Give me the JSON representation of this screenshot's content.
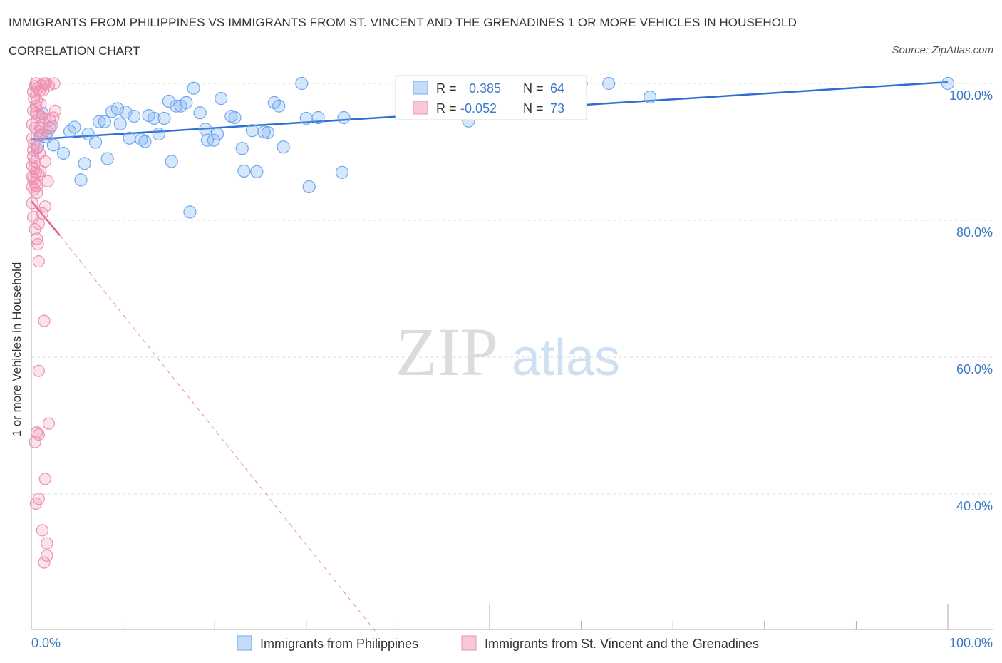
{
  "header": {
    "title": "IMMIGRANTS FROM PHILIPPINES VS IMMIGRANTS FROM ST. VINCENT AND THE GRENADINES 1 OR MORE VEHICLES IN HOUSEHOLD",
    "subtitle": "CORRELATION CHART",
    "source": "Source: ZipAtlas.com"
  },
  "watermark": {
    "zip": "ZIP",
    "atlas": "atlas"
  },
  "legend_box": {
    "rows": [
      {
        "r_label": "R =",
        "r_value": "0.385",
        "n_label": "N =",
        "n_value": "64"
      },
      {
        "r_label": "R =",
        "r_value": "-0.052",
        "n_label": "N =",
        "n_value": "73"
      }
    ]
  },
  "chart_data": {
    "type": "scatter",
    "xlabel": "",
    "ylabel": "1 or more Vehicles in Household",
    "xlim": [
      0,
      100
    ],
    "ylim": [
      20,
      100
    ],
    "x_tick_labels": [
      "0.0%",
      "100.0%"
    ],
    "y_tick_labels": [
      "100.0%",
      "80.0%",
      "60.0%",
      "40.0%"
    ],
    "y_ticks": [
      100,
      80,
      60,
      40
    ],
    "grid": true,
    "legend_position": "bottom",
    "colors": {
      "philippines": "#6fa8f0",
      "philippines_line": "#2f6fcf",
      "stvincent": "#f08fb0",
      "stvincent_line": "#e05a8a",
      "axis_text": "#3c78c8"
    },
    "series": [
      {
        "name": "Immigrants from Philippines",
        "trend": [
          [
            0,
            91.8
          ],
          [
            100,
            100.2
          ]
        ],
        "points": [
          [
            0.7,
            90.8
          ],
          [
            1.0,
            92.4
          ],
          [
            1.7,
            92.2
          ],
          [
            2.0,
            93.5
          ],
          [
            2.4,
            91.0
          ],
          [
            3.5,
            89.8
          ],
          [
            4.2,
            93.0
          ],
          [
            4.7,
            93.6
          ],
          [
            5.4,
            85.9
          ],
          [
            5.8,
            88.3
          ],
          [
            6.2,
            92.6
          ],
          [
            7.0,
            91.4
          ],
          [
            7.4,
            94.4
          ],
          [
            8.0,
            94.4
          ],
          [
            8.3,
            89.0
          ],
          [
            8.8,
            95.9
          ],
          [
            9.4,
            96.3
          ],
          [
            9.7,
            94.1
          ],
          [
            10.3,
            95.8
          ],
          [
            10.7,
            92.0
          ],
          [
            11.2,
            95.2
          ],
          [
            12.0,
            91.8
          ],
          [
            12.4,
            91.5
          ],
          [
            12.8,
            95.3
          ],
          [
            13.4,
            94.9
          ],
          [
            13.9,
            92.6
          ],
          [
            14.5,
            94.9
          ],
          [
            15.0,
            97.4
          ],
          [
            15.3,
            88.6
          ],
          [
            15.8,
            96.7
          ],
          [
            16.3,
            96.7
          ],
          [
            16.9,
            97.2
          ],
          [
            17.3,
            81.2
          ],
          [
            17.7,
            99.3
          ],
          [
            18.4,
            95.7
          ],
          [
            19.0,
            93.3
          ],
          [
            19.2,
            91.7
          ],
          [
            19.9,
            91.7
          ],
          [
            20.3,
            92.6
          ],
          [
            20.7,
            97.8
          ],
          [
            21.8,
            95.2
          ],
          [
            22.2,
            95.0
          ],
          [
            23.0,
            90.5
          ],
          [
            23.2,
            87.2
          ],
          [
            24.1,
            93.1
          ],
          [
            24.6,
            87.1
          ],
          [
            25.4,
            92.9
          ],
          [
            25.8,
            92.8
          ],
          [
            26.5,
            97.2
          ],
          [
            27.0,
            96.7
          ],
          [
            27.5,
            90.7
          ],
          [
            29.5,
            100.0
          ],
          [
            30.0,
            94.9
          ],
          [
            30.3,
            84.9
          ],
          [
            31.3,
            95.0
          ],
          [
            33.9,
            87.0
          ],
          [
            34.1,
            95.0
          ],
          [
            47.7,
            94.5
          ],
          [
            54.8,
            97.8
          ],
          [
            60.0,
            100.0
          ],
          [
            63.0,
            100.0
          ],
          [
            67.5,
            98.0
          ],
          [
            100.0,
            100.0
          ],
          [
            1.2,
            95.6
          ]
        ]
      },
      {
        "name": "Immigrants from St. Vincent and the Grenadines",
        "trend_solid": [
          [
            0,
            82.8
          ],
          [
            3.1,
            77.8
          ]
        ],
        "trend_dashed": [
          [
            3.1,
            77.8
          ],
          [
            37.5,
            20.0
          ]
        ],
        "points": [
          [
            0.2,
            98.8
          ],
          [
            0.4,
            99.6
          ],
          [
            0.5,
            100.0
          ],
          [
            0.7,
            99.3
          ],
          [
            0.9,
            98.9
          ],
          [
            1.1,
            99.7
          ],
          [
            1.4,
            100.0
          ],
          [
            1.6,
            100.0
          ],
          [
            2.5,
            100.0
          ],
          [
            0.3,
            97.8
          ],
          [
            0.6,
            97.5
          ],
          [
            1.0,
            97.0
          ],
          [
            1.3,
            99.0
          ],
          [
            0.2,
            96.0
          ],
          [
            0.5,
            95.7
          ],
          [
            0.8,
            95.4
          ],
          [
            1.1,
            95.1
          ],
          [
            1.5,
            94.8
          ],
          [
            2.0,
            94.6
          ],
          [
            2.6,
            96.0
          ],
          [
            0.1,
            94.0
          ],
          [
            0.4,
            93.5
          ],
          [
            0.8,
            93.0
          ],
          [
            1.2,
            92.6
          ],
          [
            1.8,
            92.9
          ],
          [
            2.2,
            93.8
          ],
          [
            0.1,
            92.0
          ],
          [
            0.3,
            91.2
          ],
          [
            0.6,
            90.5
          ],
          [
            0.9,
            89.8
          ],
          [
            0.2,
            89.3
          ],
          [
            0.4,
            88.6
          ],
          [
            1.5,
            88.6
          ],
          [
            0.1,
            88.0
          ],
          [
            0.3,
            87.5
          ],
          [
            0.5,
            87.0
          ],
          [
            0.8,
            86.7
          ],
          [
            1.0,
            87.2
          ],
          [
            0.2,
            86.0
          ],
          [
            0.4,
            85.5
          ],
          [
            0.6,
            85.0
          ],
          [
            0.1,
            84.9
          ],
          [
            0.3,
            84.5
          ],
          [
            0.6,
            84.0
          ],
          [
            1.5,
            82.0
          ],
          [
            1.2,
            81.0
          ],
          [
            0.8,
            79.5
          ],
          [
            0.4,
            78.7
          ],
          [
            0.6,
            77.3
          ],
          [
            0.7,
            76.5
          ],
          [
            0.8,
            74.0
          ],
          [
            1.4,
            65.3
          ],
          [
            0.8,
            58.0
          ],
          [
            1.9,
            50.3
          ],
          [
            0.6,
            49.0
          ],
          [
            0.8,
            48.7
          ],
          [
            0.4,
            47.6
          ],
          [
            1.5,
            42.2
          ],
          [
            0.8,
            39.3
          ],
          [
            0.5,
            38.6
          ],
          [
            1.2,
            34.7
          ],
          [
            1.7,
            32.8
          ],
          [
            1.7,
            31.0
          ],
          [
            1.4,
            30.0
          ],
          [
            0.1,
            82.5
          ],
          [
            0.2,
            80.5
          ],
          [
            1.0,
            93.5
          ],
          [
            2.4,
            95.0
          ],
          [
            0.2,
            90.3
          ],
          [
            0.1,
            86.4
          ],
          [
            1.8,
            85.7
          ],
          [
            0.5,
            96.7
          ],
          [
            1.9,
            99.7
          ]
        ]
      }
    ]
  }
}
